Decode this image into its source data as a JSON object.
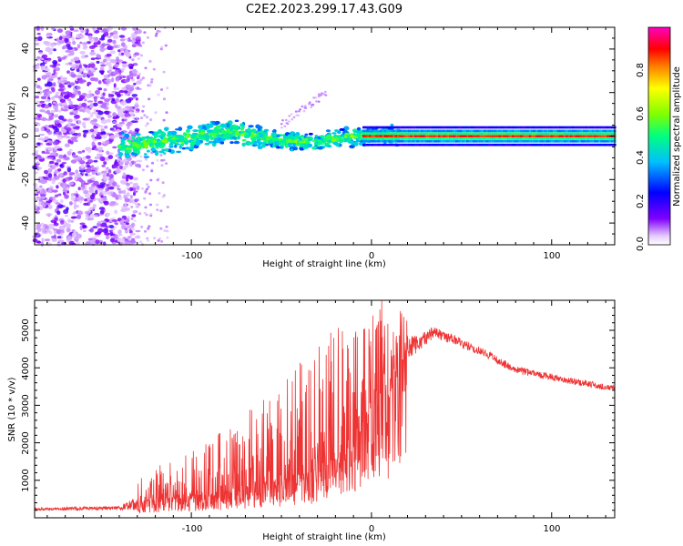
{
  "title": "C2E2.2023.299.17.43.G09",
  "colors": {
    "snr_line": "#ee3333",
    "colormap": [
      "#ffffff",
      "#8000ff",
      "#0000ff",
      "#00bfff",
      "#00ff80",
      "#80ff00",
      "#ffff00",
      "#ff8000",
      "#ff0000",
      "#ff00bf"
    ]
  },
  "chart_data": [
    {
      "type": "heatmap",
      "xlabel": "Height of straight line (km)",
      "ylabel": "Frequency (Hz)",
      "xlim": [
        -187,
        135
      ],
      "ylim": [
        -50,
        50
      ],
      "xticks": [
        "-100",
        "0",
        "100"
      ],
      "yticks": [
        "-40",
        "-20",
        "0",
        "20",
        "40"
      ],
      "colorbar": {
        "label": "Normalized spectral amplitude",
        "range": [
          0,
          1
        ],
        "ticks": [
          "0.0",
          "0.2",
          "0.4",
          "0.6",
          "0.8"
        ]
      },
      "signal_center_hz": [
        {
          "x": -135,
          "y": -5
        },
        {
          "x": -110,
          "y": -2
        },
        {
          "x": -80,
          "y": 2
        },
        {
          "x": -50,
          "y": -2
        },
        {
          "x": -30,
          "y": -3
        },
        {
          "x": -10,
          "y": 0
        },
        {
          "x": 10,
          "y": 0
        },
        {
          "x": 135,
          "y": 0
        }
      ]
    },
    {
      "type": "line",
      "xlabel": "Height of straight line (km)",
      "ylabel": "SNR (10 * v/v)",
      "xlim": [
        -187,
        135
      ],
      "ylim": [
        0,
        5800
      ],
      "xticks": [
        "-100",
        "0",
        "100"
      ],
      "yticks": [
        "1000",
        "2000",
        "3000",
        "4000",
        "5000"
      ],
      "series": [
        {
          "envelope": [
            {
              "x": -187,
              "base": 230,
              "noise": 80
            },
            {
              "x": -140,
              "base": 260,
              "noise": 100
            },
            {
              "x": -125,
              "base": 450,
              "noise": 500
            },
            {
              "x": -100,
              "base": 550,
              "noise": 800
            },
            {
              "x": -80,
              "base": 700,
              "noise": 1100
            },
            {
              "x": -60,
              "base": 900,
              "noise": 1400
            },
            {
              "x": -40,
              "base": 1100,
              "noise": 1900
            },
            {
              "x": -20,
              "base": 1500,
              "noise": 2300
            },
            {
              "x": -5,
              "base": 2600,
              "noise": 1500
            },
            {
              "x": 10,
              "base": 3300,
              "noise": 1800
            },
            {
              "x": 20,
              "base": 4500,
              "noise": 600
            },
            {
              "x": 35,
              "base": 4950,
              "noise": 300
            },
            {
              "x": 60,
              "base": 4450,
              "noise": 250
            },
            {
              "x": 80,
              "base": 3950,
              "noise": 200
            },
            {
              "x": 110,
              "base": 3650,
              "noise": 180
            },
            {
              "x": 135,
              "base": 3450,
              "noise": 150
            }
          ]
        }
      ]
    }
  ]
}
